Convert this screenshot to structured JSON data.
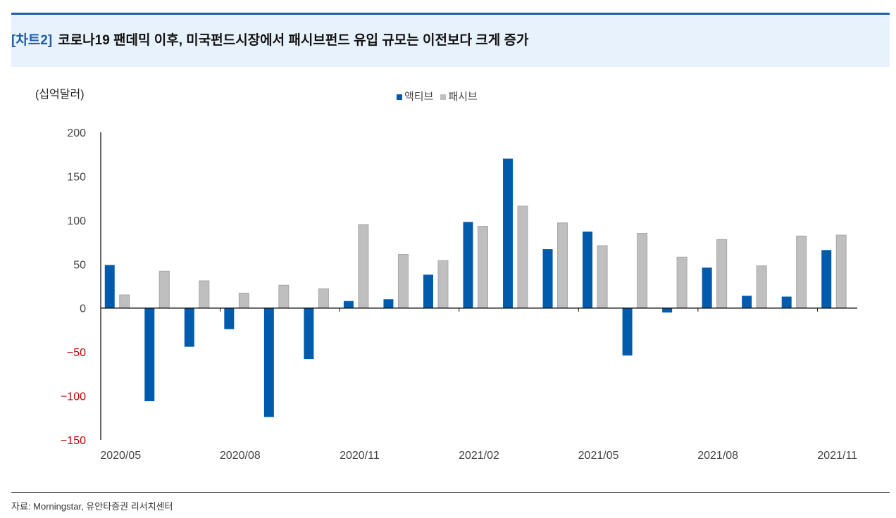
{
  "header": {
    "tag": "[차트2]",
    "title": "코로나19 팬데믹 이후, 미국펀드시장에서 패시브펀드 유입 규모는 이전보다 크게 증가"
  },
  "footer": {
    "source": "자료: Morningstar, 유안타증권 리서치센터"
  },
  "chart_data": {
    "type": "bar",
    "unit_label": "(십억달러)",
    "categories": [
      "2020/05",
      "2020/06",
      "2020/07",
      "2020/08",
      "2020/09",
      "2020/10",
      "2020/11",
      "2020/12",
      "2021/01",
      "2021/02",
      "2021/03",
      "2021/04",
      "2021/05",
      "2021/06",
      "2021/07",
      "2021/08",
      "2021/09",
      "2021/10",
      "2021/11"
    ],
    "x_tick_labels": [
      "2020/05",
      "2020/08",
      "2020/11",
      "2021/02",
      "2021/05",
      "2021/08",
      "2021/11"
    ],
    "y_ticks": [
      200,
      150,
      100,
      50,
      0,
      -50,
      -100,
      -150
    ],
    "ylim": [
      -150,
      200
    ],
    "negative_tick_color": "#c00000",
    "legend_position": "top-center",
    "grid": false,
    "series": [
      {
        "name": "액티브",
        "color": "#005bac",
        "values": [
          49,
          -106,
          -44,
          -24,
          -124,
          -58,
          8,
          10,
          38,
          98,
          170,
          67,
          87,
          -54,
          -5,
          46,
          14,
          13,
          66
        ]
      },
      {
        "name": "패시브",
        "color": "#bfbfbf",
        "values": [
          15,
          42,
          31,
          17,
          26,
          22,
          95,
          61,
          54,
          93,
          116,
          97,
          71,
          85,
          58,
          78,
          48,
          82,
          83
        ]
      }
    ]
  }
}
